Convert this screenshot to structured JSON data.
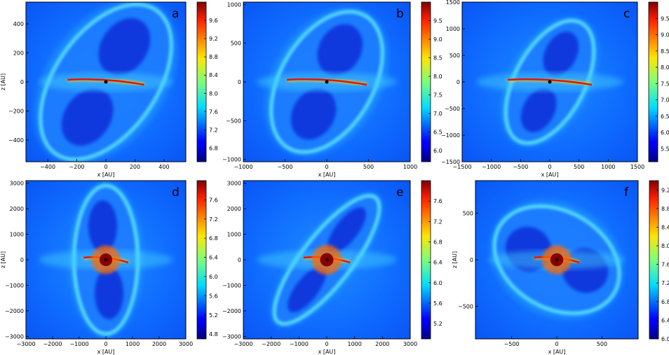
{
  "chart_data": [
    {
      "type": "heatmap",
      "panel_label": "a",
      "xlabel": "x [AU]",
      "ylabel": "z [AU]",
      "xticks": [
        -400,
        -200,
        0,
        200,
        400
      ],
      "yticks": [
        -400,
        -200,
        0,
        200,
        400
      ],
      "xlim": [
        -550,
        550
      ],
      "ylim": [
        -550,
        550
      ],
      "colorbar_ticks": [
        "6.8",
        "7.2",
        "7.6",
        "8.0",
        "8.4",
        "8.8",
        "9.2",
        "9.6"
      ],
      "colorbar_range": [
        6.5,
        10.0
      ],
      "lobe_tilt_deg": 35,
      "lobe_extent": [
        0.55,
        0.32
      ]
    },
    {
      "type": "heatmap",
      "panel_label": "b",
      "xlabel": "x [AU]",
      "ylabel": "",
      "xticks": [
        -1000,
        -500,
        0,
        500,
        1000
      ],
      "yticks": [
        -1000,
        -500,
        0,
        500,
        1000
      ],
      "xlim": [
        -1000,
        1000
      ],
      "ylim": [
        -1030,
        1030
      ],
      "colorbar_ticks": [
        "6.0",
        "6.5",
        "7.0",
        "7.5",
        "8.0",
        "8.5",
        "9.0",
        "9.5"
      ],
      "colorbar_range": [
        5.7,
        10.0
      ],
      "lobe_tilt_deg": 30,
      "lobe_extent": [
        0.48,
        0.28
      ]
    },
    {
      "type": "heatmap",
      "panel_label": "c",
      "xlabel": "x [AU]",
      "ylabel": "",
      "xticks": [
        -1500,
        -1000,
        -500,
        0,
        500,
        1000,
        1500
      ],
      "yticks": [
        -1500,
        -1000,
        -500,
        0,
        500,
        1000,
        1500
      ],
      "xlim": [
        -1500,
        1500
      ],
      "ylim": [
        -1500,
        1500
      ],
      "colorbar_ticks": [
        "5.5",
        "6.0",
        "6.5",
        "7.0",
        "7.5",
        "8.0",
        "8.5",
        "9.0",
        "9.5"
      ],
      "colorbar_range": [
        5.1,
        10.0
      ],
      "lobe_tilt_deg": 28,
      "lobe_extent": [
        0.42,
        0.2
      ]
    },
    {
      "type": "heatmap",
      "panel_label": "d",
      "xlabel": "x [AU]",
      "ylabel": "z [AU]",
      "xticks": [
        -3000,
        -2000,
        -1000,
        0,
        1000,
        2000,
        3000
      ],
      "yticks": [
        -3000,
        -2000,
        -1000,
        0,
        1000,
        2000,
        3000
      ],
      "xlim": [
        -3000,
        3000
      ],
      "ylim": [
        -3100,
        3100
      ],
      "colorbar_ticks": [
        "4.8",
        "5.2",
        "5.6",
        "6.0",
        "6.4",
        "6.8",
        "7.2",
        "7.6"
      ],
      "colorbar_range": [
        4.7,
        8.0
      ],
      "lobe_tilt_deg": 0,
      "lobe_extent": [
        0.47,
        0.2
      ]
    },
    {
      "type": "heatmap",
      "panel_label": "e",
      "xlabel": "x [AU]",
      "ylabel": "",
      "xticks": [
        -3000,
        -2000,
        -1000,
        0,
        1000,
        2000,
        3000
      ],
      "yticks": [
        -3000,
        -2000,
        -1000,
        0,
        1000,
        2000,
        3000
      ],
      "xlim": [
        -3000,
        3000
      ],
      "ylim": [
        -3100,
        3100
      ],
      "colorbar_ticks": [
        "5.2",
        "5.6",
        "6.0",
        "6.4",
        "6.8",
        "7.2",
        "7.6"
      ],
      "colorbar_range": [
        4.9,
        8.0
      ],
      "lobe_tilt_deg": 38,
      "lobe_extent": [
        0.5,
        0.15
      ]
    },
    {
      "type": "heatmap",
      "panel_label": "f",
      "xlabel": "x [AU]",
      "ylabel": "z [AU]",
      "xticks": [
        -500,
        0,
        500
      ],
      "yticks": [
        -500,
        0,
        500
      ],
      "xlim": [
        -900,
        900
      ],
      "ylim": [
        -850,
        850
      ],
      "colorbar_ticks": [
        "6.0",
        "6.4",
        "6.8",
        "7.2",
        "7.6",
        "8.0",
        "8.4",
        "8.8",
        "9.2"
      ],
      "colorbar_range": [
        6.0,
        9.4
      ],
      "lobe_tilt_deg": -60,
      "lobe_extent": [
        0.42,
        0.3
      ]
    }
  ]
}
